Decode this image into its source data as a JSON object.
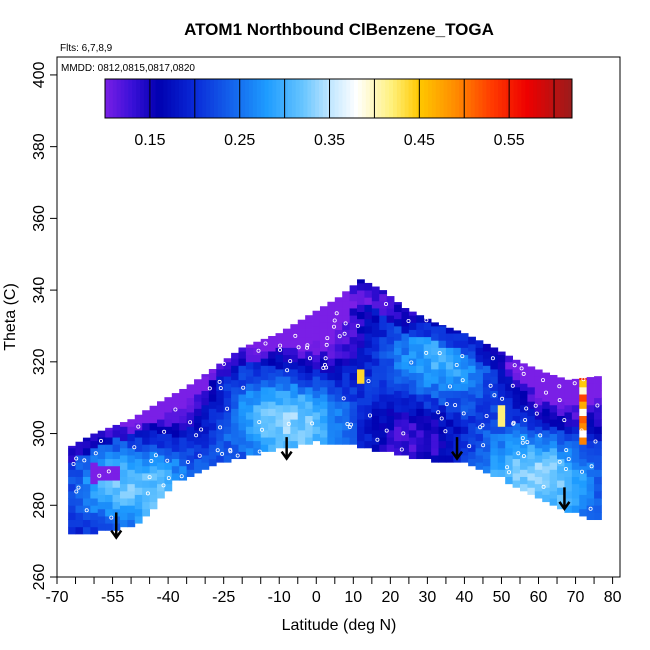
{
  "chart_data": {
    "type": "heatmap",
    "title": "ATOM1 Northbound ClBenzene_TOGA",
    "flights_label": "Flts: 6,7,8,9",
    "dates_label": "MMDD: 0812,0815,0817,0820",
    "xlabel": "Latitude (deg N)",
    "ylabel": "Theta (C)",
    "xlim": [
      -70,
      82
    ],
    "ylim": [
      260,
      405
    ],
    "x_ticks": [
      -70,
      -55,
      -40,
      -25,
      -10,
      0,
      10,
      20,
      30,
      40,
      50,
      60,
      70,
      80
    ],
    "x_tick_labels": [
      "-70",
      "-55",
      "-40",
      "-25",
      "-10",
      "0",
      "10",
      "20",
      "30",
      "40",
      "50",
      "60",
      "70",
      "80"
    ],
    "x_minor_ticks": [
      -65,
      -60,
      -50,
      -45,
      -35,
      -30,
      -20,
      -15,
      -5,
      5,
      15,
      25,
      35,
      45,
      55,
      65,
      75
    ],
    "y_ticks": [
      260,
      280,
      300,
      320,
      340,
      360,
      380,
      400
    ],
    "y_tick_labels": [
      "260",
      "280",
      "300",
      "320",
      "340",
      "360",
      "380",
      "400"
    ],
    "colorbar": {
      "range": [
        0.1,
        0.62
      ],
      "ticks": [
        0.15,
        0.25,
        0.35,
        0.45,
        0.55
      ],
      "tick_labels": [
        "0.15",
        "0.25",
        "0.35",
        "0.45",
        "0.55"
      ],
      "dividers": [
        0.15,
        0.2,
        0.25,
        0.3,
        0.35,
        0.4,
        0.45,
        0.5,
        0.55,
        0.6
      ],
      "stops": [
        {
          "v": 0.1,
          "color": "#7a1fe6"
        },
        {
          "v": 0.13,
          "color": "#3a10d8"
        },
        {
          "v": 0.16,
          "color": "#0000b0"
        },
        {
          "v": 0.2,
          "color": "#0a2ad8"
        },
        {
          "v": 0.25,
          "color": "#1670f0"
        },
        {
          "v": 0.28,
          "color": "#1e9cff"
        },
        {
          "v": 0.32,
          "color": "#66c4ff"
        },
        {
          "v": 0.35,
          "color": "#bfe6ff"
        },
        {
          "v": 0.38,
          "color": "#ffffff"
        },
        {
          "v": 0.42,
          "color": "#fff07a"
        },
        {
          "v": 0.45,
          "color": "#ffc800"
        },
        {
          "v": 0.49,
          "color": "#ff8c00"
        },
        {
          "v": 0.53,
          "color": "#ff3c00"
        },
        {
          "v": 0.57,
          "color": "#ee0000"
        },
        {
          "v": 0.62,
          "color": "#9a1c1c"
        }
      ]
    },
    "coverage_upper": [
      [
        -67,
        296
      ],
      [
        -60,
        300
      ],
      [
        -50,
        304
      ],
      [
        -42,
        309
      ],
      [
        -35,
        313
      ],
      [
        -28,
        318
      ],
      [
        -20,
        324
      ],
      [
        -10,
        328
      ],
      [
        -2,
        333
      ],
      [
        6,
        338
      ],
      [
        12,
        343
      ],
      [
        18,
        340
      ],
      [
        24,
        335
      ],
      [
        32,
        331
      ],
      [
        40,
        328
      ],
      [
        48,
        324
      ],
      [
        55,
        320
      ],
      [
        62,
        317
      ],
      [
        68,
        315
      ],
      [
        76,
        316
      ]
    ],
    "coverage_lower": [
      [
        -67,
        272
      ],
      [
        -58,
        273
      ],
      [
        -48,
        275
      ],
      [
        -38,
        287
      ],
      [
        -27,
        292
      ],
      [
        -18,
        294
      ],
      [
        -10,
        296
      ],
      [
        0,
        298
      ],
      [
        10,
        297
      ],
      [
        20,
        295
      ],
      [
        30,
        293
      ],
      [
        40,
        292
      ],
      [
        50,
        288
      ],
      [
        60,
        282
      ],
      [
        70,
        278
      ],
      [
        76,
        276
      ]
    ],
    "descent_markers": [
      {
        "lat": -54,
        "theta_top": 278,
        "theta_tip": 271
      },
      {
        "lat": -8,
        "theta_top": 299,
        "theta_tip": 293
      },
      {
        "lat": 38,
        "theta_top": 299,
        "theta_tip": 293
      },
      {
        "lat": 67,
        "theta_top": 285,
        "theta_tip": 279
      }
    ]
  }
}
